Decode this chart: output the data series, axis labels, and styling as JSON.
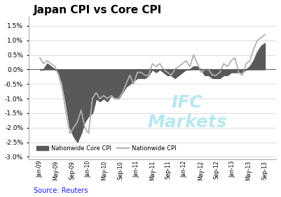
{
  "title": "Japan CPI vs Core CPI",
  "source": "Source: Reuters",
  "legend1": "Nationwide Core CPI",
  "legend2": "Nationwide CPI",
  "ylim": [
    -0.031,
    0.018
  ],
  "yticks": [
    -0.03,
    -0.025,
    -0.02,
    -0.015,
    -0.01,
    -0.005,
    0.0,
    0.005,
    0.01,
    0.015
  ],
  "core_cpi": [
    0.0,
    0.0,
    0.002,
    0.001,
    0.0,
    -0.001,
    -0.005,
    -0.012,
    -0.02,
    -0.023,
    -0.025,
    -0.022,
    -0.018,
    -0.016,
    -0.015,
    -0.01,
    -0.011,
    -0.01,
    -0.011,
    -0.009,
    -0.01,
    -0.01,
    -0.008,
    -0.006,
    -0.005,
    -0.004,
    -0.003,
    -0.003,
    -0.003,
    -0.002,
    0.0,
    -0.001,
    0.0,
    -0.001,
    -0.002,
    -0.002,
    -0.003,
    -0.002,
    -0.001,
    0.0,
    0.0,
    0.001,
    0.001,
    0.0,
    -0.002,
    -0.002,
    -0.003,
    -0.003,
    -0.003,
    -0.002,
    -0.002,
    -0.001,
    -0.001,
    -0.001,
    -0.001,
    0.0,
    0.001,
    0.003,
    0.006,
    0.008,
    0.009
  ],
  "cpi": [
    0.004,
    0.002,
    0.003,
    0.002,
    0.001,
    -0.002,
    -0.007,
    -0.015,
    -0.022,
    -0.02,
    -0.018,
    -0.014,
    -0.02,
    -0.022,
    -0.01,
    -0.008,
    -0.01,
    -0.009,
    -0.01,
    -0.009,
    -0.01,
    -0.01,
    -0.008,
    -0.005,
    -0.002,
    -0.005,
    -0.001,
    -0.001,
    -0.002,
    -0.002,
    0.002,
    0.001,
    0.002,
    0.0,
    -0.001,
    -0.002,
    0.0,
    0.001,
    0.002,
    0.003,
    0.001,
    0.005,
    0.002,
    -0.001,
    0.0,
    0.0,
    -0.002,
    -0.002,
    -0.001,
    0.002,
    0.001,
    0.003,
    0.004,
    -0.001,
    -0.002,
    0.002,
    0.003,
    0.007,
    0.01,
    0.011,
    0.012
  ],
  "fill_color": "#595959",
  "line_color": "#b0b0b0",
  "watermark_color": "#b8e8ef",
  "title_color": "#000000",
  "source_color": "#1a1aff",
  "background_color": "#ffffff",
  "tick_labels": [
    "Jan-09",
    "May-09",
    "Sep-09",
    "Jan-10",
    "May-10",
    "Sep-10",
    "Jan-11",
    "May-11",
    "Sep-11",
    "Jan-12",
    "May-12",
    "Sep-12",
    "Jan-13",
    "May-13",
    "Sep-13"
  ]
}
